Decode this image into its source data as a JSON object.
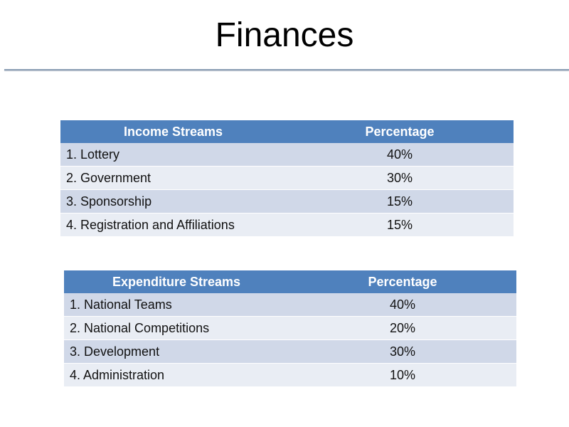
{
  "slide": {
    "title": "Finances"
  },
  "income_table": {
    "headers": [
      "Income Streams",
      "Percentage"
    ],
    "rows": [
      {
        "label": "1. Lottery",
        "value": "40%"
      },
      {
        "label": "2. Government",
        "value": "30%"
      },
      {
        "label": "3. Sponsorship",
        "value": "15%"
      },
      {
        "label": "4. Registration and Affiliations",
        "value": "15%"
      }
    ]
  },
  "expenditure_table": {
    "headers": [
      "Expenditure Streams",
      "Percentage"
    ],
    "rows": [
      {
        "label": "1. National Teams",
        "value": "40%"
      },
      {
        "label": "2. National Competitions",
        "value": "20%"
      },
      {
        "label": "3. Development",
        "value": "30%"
      },
      {
        "label": "4. Administration",
        "value": "10%"
      }
    ]
  },
  "colors": {
    "header_bg": "#4f81bd",
    "row_odd_bg": "#d0d8e8",
    "row_even_bg": "#e9edf4",
    "rule": "#8c9fb5"
  }
}
